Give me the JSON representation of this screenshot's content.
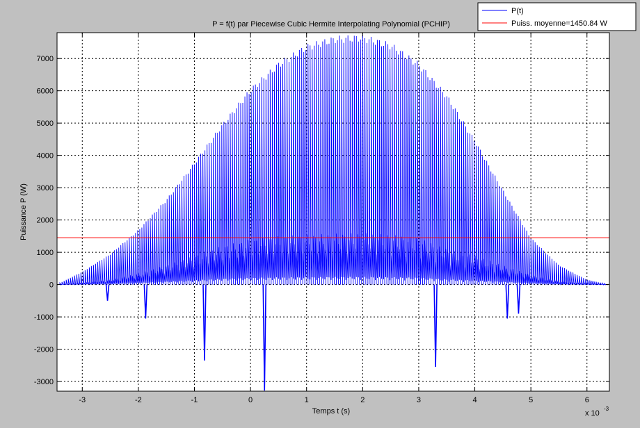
{
  "chart_data": {
    "type": "line",
    "title": "P = f(t) par Piecewise Cubic Hermite Interpolating Polynomial (PCHIP)",
    "xlabel": "Temps t (s)",
    "ylabel": "Puissance P (W)",
    "x_multiplier_label": "x 10",
    "x_multiplier_exponent": "-3",
    "xlim": [
      -3.45,
      6.4
    ],
    "ylim": [
      -3300,
      7800
    ],
    "x_ticks": [
      -3,
      -2,
      -1,
      0,
      1,
      2,
      3,
      4,
      5,
      6
    ],
    "x_tick_labels": [
      "-3",
      "-2",
      "-1",
      "0",
      "1",
      "2",
      "3",
      "4",
      "5",
      "6"
    ],
    "y_ticks": [
      -3000,
      -2000,
      -1000,
      0,
      1000,
      2000,
      3000,
      4000,
      5000,
      6000,
      7000
    ],
    "y_tick_labels": [
      "-3000",
      "-2000",
      "-1000",
      "0",
      "1000",
      "2000",
      "3000",
      "4000",
      "5000",
      "6000",
      "7000"
    ],
    "grid": true,
    "legend_position": "top-right",
    "series": [
      {
        "name": "P(t)",
        "color": "#0000ff",
        "style": "oscillating",
        "envelope_upper": {
          "x": [
            -3.4,
            -3.0,
            -2.5,
            -2.0,
            -1.5,
            -1.0,
            -0.5,
            0.0,
            0.5,
            1.0,
            1.5,
            2.0,
            2.5,
            3.0,
            3.5,
            4.0,
            4.5,
            5.0,
            5.5,
            6.0,
            6.35
          ],
          "y": [
            50,
            400,
            950,
            1700,
            2650,
            3800,
            5000,
            6100,
            6900,
            7450,
            7700,
            7750,
            7500,
            6900,
            5900,
            4500,
            2950,
            1450,
            600,
            150,
            20
          ]
        },
        "envelope_lower": {
          "x": [
            -3.4,
            -3.0,
            -2.5,
            -2.0,
            -1.5,
            -1.0,
            -0.5,
            0.0,
            0.5,
            1.0,
            1.5,
            2.0,
            2.5,
            3.0,
            3.5,
            4.0,
            4.5,
            5.0,
            5.5,
            6.0,
            6.35
          ],
          "y": [
            0,
            60,
            150,
            350,
            600,
            900,
            1200,
            1400,
            1500,
            1550,
            1580,
            1600,
            1550,
            1450,
            1100,
            900,
            600,
            300,
            100,
            30,
            0
          ]
        },
        "negative_spikes": [
          {
            "x": -2.55,
            "y": -500
          },
          {
            "x": -1.87,
            "y": -1050
          },
          {
            "x": -0.82,
            "y": -2350
          },
          {
            "x": 0.25,
            "y": -3280
          },
          {
            "x": 3.3,
            "y": -2550
          },
          {
            "x": 4.58,
            "y": -1050
          },
          {
            "x": 4.78,
            "y": -900
          }
        ]
      },
      {
        "name": "Puiss. moyenne=1450.84 W",
        "color": "#ff0000",
        "style": "constant",
        "y": 1450.84
      }
    ]
  }
}
